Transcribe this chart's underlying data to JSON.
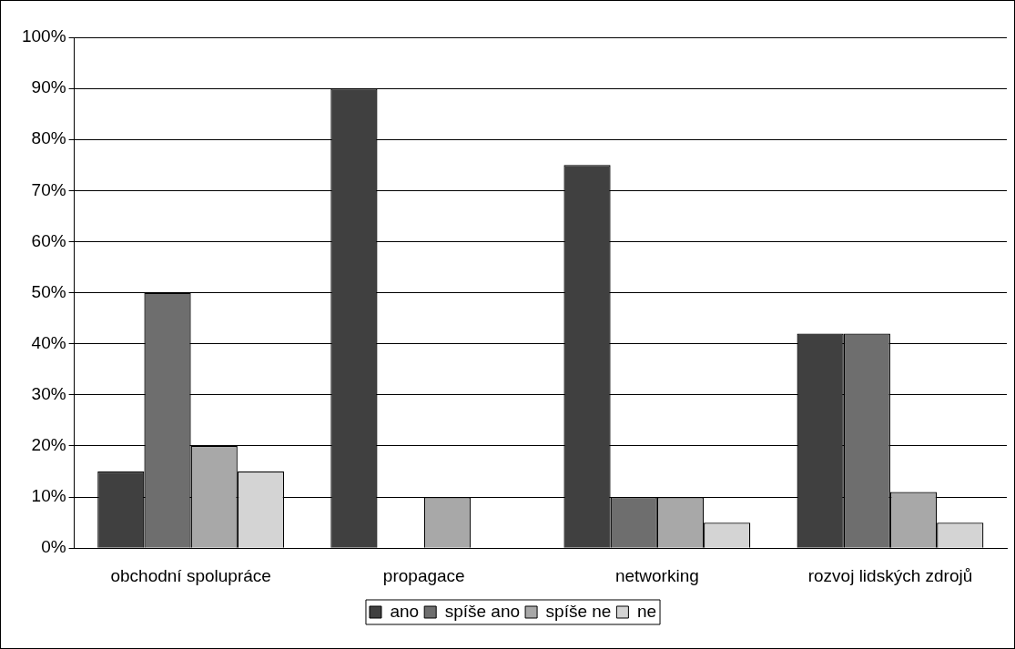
{
  "chart_data": {
    "type": "bar",
    "categories": [
      "obchodní spolupráce",
      "propagace",
      "networking",
      "rozvoj lidských zdrojů"
    ],
    "series": [
      {
        "name": "ano",
        "color": "#404040",
        "values": [
          15,
          90,
          75,
          42
        ]
      },
      {
        "name": "spíše ano",
        "color": "#6e6e6e",
        "values": [
          50,
          0,
          10,
          42
        ]
      },
      {
        "name": "spíše ne",
        "color": "#a8a8a8",
        "values": [
          20,
          10,
          10,
          11
        ]
      },
      {
        "name": "ne",
        "color": "#d4d4d4",
        "values": [
          15,
          0,
          5,
          5
        ]
      }
    ],
    "ylim": [
      0,
      100
    ],
    "yticks": [
      {
        "value": 0,
        "label": "0%"
      },
      {
        "value": 10,
        "label": "10%"
      },
      {
        "value": 20,
        "label": "20%"
      },
      {
        "value": 30,
        "label": "30%"
      },
      {
        "value": 40,
        "label": "40%"
      },
      {
        "value": 50,
        "label": "50%"
      },
      {
        "value": 60,
        "label": "60%"
      },
      {
        "value": 70,
        "label": "70%"
      },
      {
        "value": 80,
        "label": "80%"
      },
      {
        "value": 90,
        "label": "90%"
      },
      {
        "value": 100,
        "label": "100%"
      }
    ],
    "grid": "y",
    "legend": "bottom"
  }
}
